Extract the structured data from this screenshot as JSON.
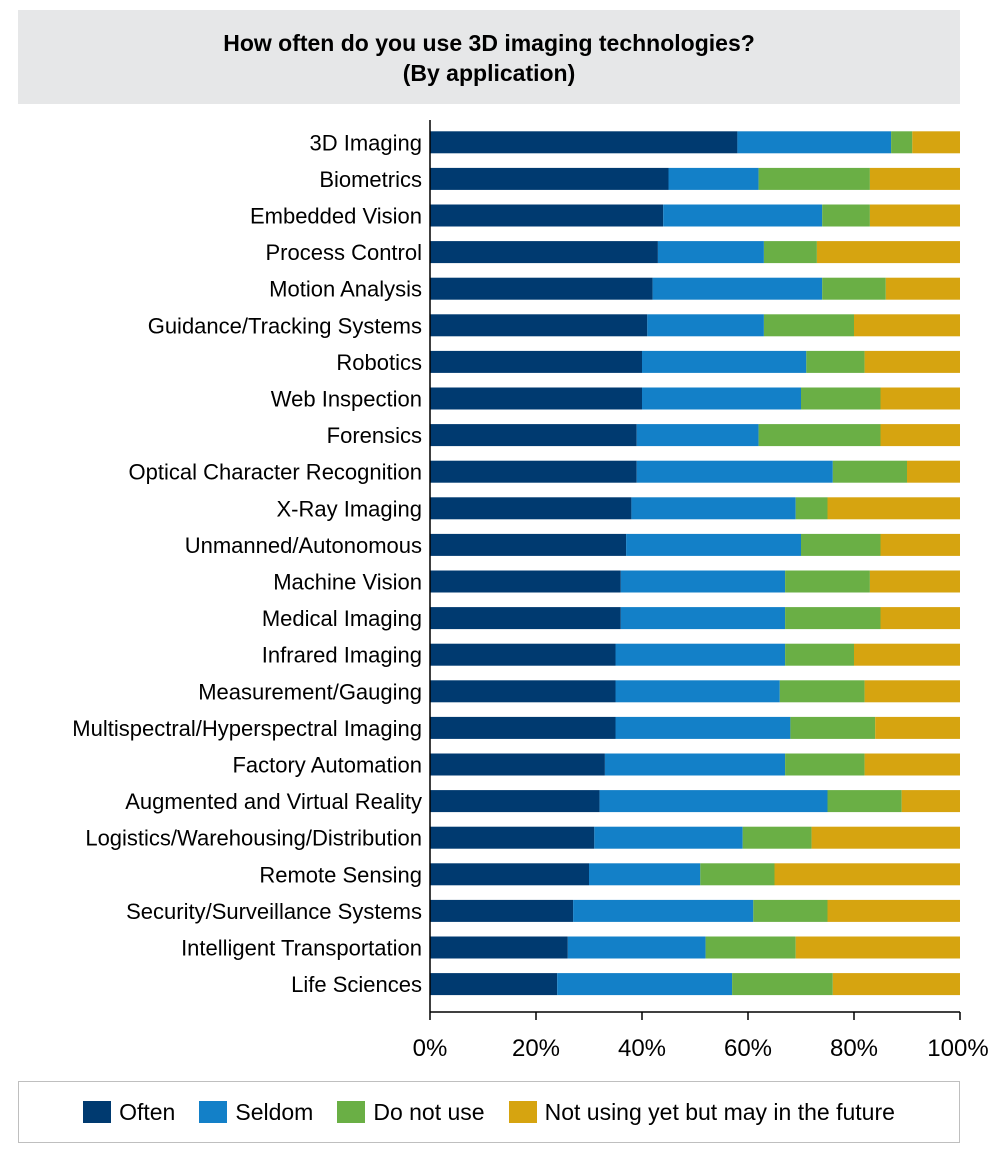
{
  "chart_data": {
    "type": "bar",
    "orientation": "horizontal",
    "stacked": true,
    "title": "How often do you use 3D imaging technologies?",
    "subtitle": "(By application)",
    "xlabel": "",
    "ylabel": "",
    "xlim": [
      0,
      100
    ],
    "x_ticks": [
      "0%",
      "20%",
      "40%",
      "60%",
      "80%",
      "100%"
    ],
    "categories": [
      "3D Imaging",
      "Biometrics",
      "Embedded Vision",
      "Process Control",
      "Motion Analysis",
      "Guidance/Tracking Systems",
      "Robotics",
      "Web Inspection",
      "Forensics",
      "Optical Character Recognition",
      "X-Ray Imaging",
      "Unmanned/Autonomous",
      "Machine Vision",
      "Medical Imaging",
      "Infrared Imaging",
      "Measurement/Gauging",
      "Multispectral/Hyperspectral Imaging",
      "Factory Automation",
      "Augmented and Virtual Reality",
      "Logistics/Warehousing/Distribution",
      "Remote Sensing",
      "Security/Surveillance Systems",
      "Intelligent Transportation",
      "Life Sciences"
    ],
    "series": [
      {
        "name": "Often",
        "color": "#003a70",
        "values": [
          58,
          45,
          44,
          43,
          42,
          41,
          40,
          40,
          39,
          39,
          38,
          37,
          36,
          36,
          35,
          35,
          35,
          33,
          32,
          31,
          30,
          27,
          26,
          24
        ]
      },
      {
        "name": "Seldom",
        "color": "#1380c8",
        "values": [
          29,
          17,
          30,
          20,
          32,
          22,
          31,
          30,
          23,
          37,
          31,
          33,
          31,
          31,
          32,
          31,
          33,
          34,
          43,
          28,
          21,
          34,
          26,
          33
        ]
      },
      {
        "name": "Do not use",
        "color": "#6aaf45",
        "values": [
          4,
          21,
          9,
          10,
          12,
          17,
          11,
          15,
          23,
          14,
          6,
          15,
          16,
          18,
          13,
          16,
          16,
          15,
          14,
          13,
          14,
          14,
          17,
          19
        ]
      },
      {
        "name": "Not using yet but may in the future",
        "color": "#d6a410",
        "values": [
          9,
          17,
          17,
          27,
          14,
          20,
          18,
          15,
          15,
          10,
          25,
          15,
          17,
          15,
          20,
          18,
          16,
          18,
          11,
          28,
          35,
          25,
          31,
          24
        ]
      }
    ],
    "legend_position": "bottom",
    "grid": false
  }
}
